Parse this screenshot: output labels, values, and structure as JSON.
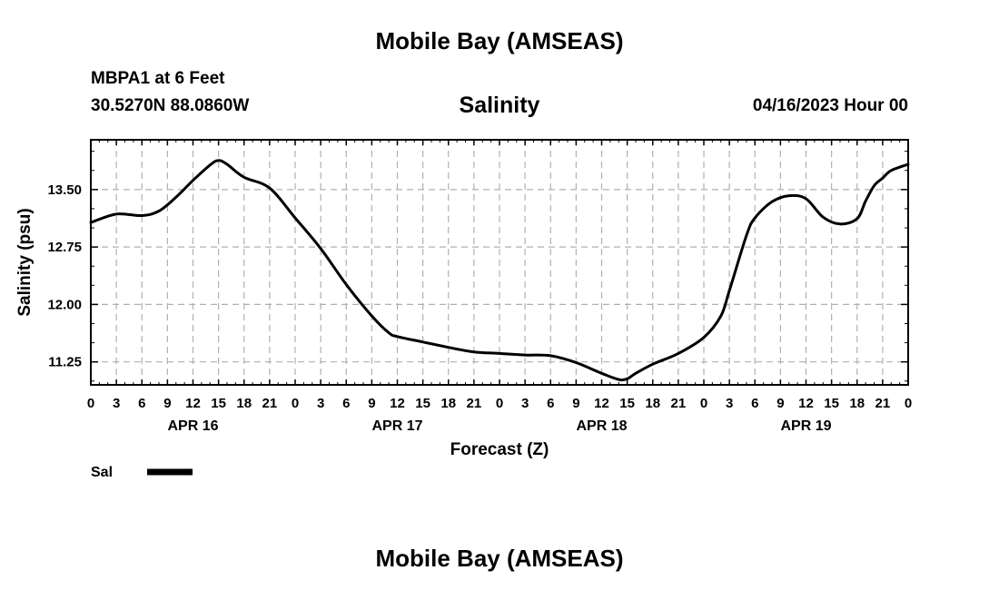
{
  "page": {
    "title_top": "Mobile Bay (AMSEAS)",
    "title_bottom": "Mobile Bay (AMSEAS)",
    "station": "MBPA1 at 6 Feet",
    "coords": "30.5270N  88.0860W",
    "datetime": "04/16/2023 Hour 00"
  },
  "chart_data": {
    "type": "line",
    "title": "Salinity",
    "xlabel": "Forecast (Z)",
    "ylabel": "Salinity (psu)",
    "x_unit": "forecast hour (Z) from 04/16/2023 00Z",
    "xlim": [
      0,
      96
    ],
    "ylim": [
      10.95,
      14.15
    ],
    "x_ticks": [
      0,
      3,
      6,
      9,
      12,
      15,
      18,
      21,
      24,
      27,
      30,
      33,
      36,
      39,
      42,
      45,
      48,
      51,
      54,
      57,
      60,
      63,
      66,
      69,
      72,
      75,
      78,
      81,
      84,
      87,
      90,
      93,
      96
    ],
    "x_tick_labels": [
      "0",
      "3",
      "6",
      "9",
      "12",
      "15",
      "18",
      "21",
      "0",
      "3",
      "6",
      "9",
      "12",
      "15",
      "18",
      "21",
      "0",
      "3",
      "6",
      "9",
      "12",
      "15",
      "18",
      "21",
      "0",
      "3",
      "6",
      "9",
      "12",
      "15",
      "18",
      "21",
      "0"
    ],
    "day_labels": [
      {
        "x": 12,
        "label": "APR 16"
      },
      {
        "x": 36,
        "label": "APR 17"
      },
      {
        "x": 60,
        "label": "APR 18"
      },
      {
        "x": 84,
        "label": "APR 19"
      }
    ],
    "y_ticks": [
      11.25,
      12.0,
      12.75,
      13.5
    ],
    "y_tick_labels": [
      "11.25",
      "12.00",
      "12.75",
      "13.50"
    ],
    "grid": true,
    "legend_position": "bottom-left",
    "series": [
      {
        "name": "Sal",
        "color": "#000000",
        "x": [
          0,
          3,
          6,
          8,
          10,
          12,
          14,
          15,
          16,
          18,
          21,
          24,
          27,
          30,
          33,
          35,
          36,
          39,
          42,
          45,
          48,
          51,
          54,
          57,
          60,
          62,
          63,
          64,
          66,
          69,
          72,
          74,
          75,
          77,
          78,
          80,
          82,
          84,
          86,
          88,
          90,
          91,
          92,
          93,
          94,
          96
        ],
        "values": [
          13.07,
          13.18,
          13.16,
          13.22,
          13.4,
          13.62,
          13.82,
          13.88,
          13.83,
          13.66,
          13.52,
          13.13,
          12.73,
          12.26,
          11.85,
          11.63,
          11.58,
          11.51,
          11.44,
          11.38,
          11.36,
          11.34,
          11.33,
          11.24,
          11.1,
          11.02,
          11.03,
          11.1,
          11.22,
          11.36,
          11.57,
          11.85,
          12.18,
          12.9,
          13.13,
          13.34,
          13.42,
          13.38,
          13.14,
          13.05,
          13.12,
          13.35,
          13.55,
          13.65,
          13.75,
          13.83
        ]
      }
    ]
  }
}
